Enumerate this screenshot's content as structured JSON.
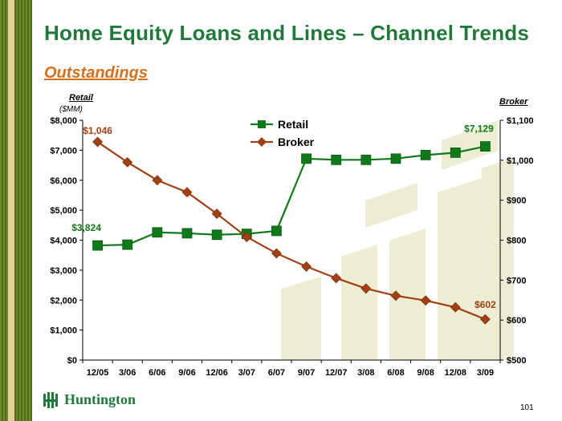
{
  "header": {
    "title": "Home Equity Loans and Lines – Channel  Trends",
    "subtitle": "Outstandings"
  },
  "axes": {
    "left_title": "Retail",
    "left_unit": "($MM)",
    "right_title": "Broker"
  },
  "footer": {
    "logo_text": "Huntington",
    "page_number": "101"
  },
  "colors": {
    "title": "#1f7a3a",
    "subtitle": "#d7701c",
    "retail": "#0f7a1a",
    "broker": "#a34012",
    "background_shapes": "#ecedd3"
  },
  "chart_data": {
    "type": "line",
    "categories": [
      "12/05",
      "3/06",
      "6/06",
      "9/06",
      "12/06",
      "3/07",
      "6/07",
      "9/07",
      "12/07",
      "3/08",
      "6/08",
      "9/08",
      "12/08",
      "3/09"
    ],
    "series": [
      {
        "name": "Retail",
        "axis": "left",
        "marker": "square",
        "values": [
          3824,
          3850,
          4260,
          4230,
          4180,
          4210,
          4310,
          6720,
          6680,
          6680,
          6720,
          6840,
          6920,
          7129
        ]
      },
      {
        "name": "Broker",
        "axis": "right",
        "marker": "diamond",
        "values": [
          1046,
          995,
          950,
          920,
          866,
          808,
          767,
          734,
          705,
          679,
          661,
          649,
          632,
          602
        ]
      }
    ],
    "left_axis": {
      "ylim": [
        0,
        8000
      ],
      "ticks": [
        0,
        1000,
        2000,
        3000,
        4000,
        5000,
        6000,
        7000,
        8000
      ],
      "tick_labels": [
        "$0",
        "$1,000",
        "$2,000",
        "$3,000",
        "$4,000",
        "$5,000",
        "$6,000",
        "$7,000",
        "$8,000"
      ]
    },
    "right_axis": {
      "ylim": [
        500,
        1100
      ],
      "ticks": [
        500,
        600,
        700,
        800,
        900,
        1000,
        1100
      ],
      "tick_labels": [
        "$500",
        "$600",
        "$700",
        "$800",
        "$900",
        "$1,000",
        "$1,100"
      ]
    },
    "annotations": [
      {
        "series": "Broker",
        "index": 0,
        "text": "$1,046"
      },
      {
        "series": "Retail",
        "index": 0,
        "text": "$3,824"
      },
      {
        "series": "Retail",
        "index": 13,
        "text": "$7,129"
      },
      {
        "series": "Broker",
        "index": 13,
        "text": "$602"
      }
    ],
    "legend": {
      "position": "top-center",
      "entries": [
        "Retail",
        "Broker"
      ]
    },
    "grid": false
  }
}
